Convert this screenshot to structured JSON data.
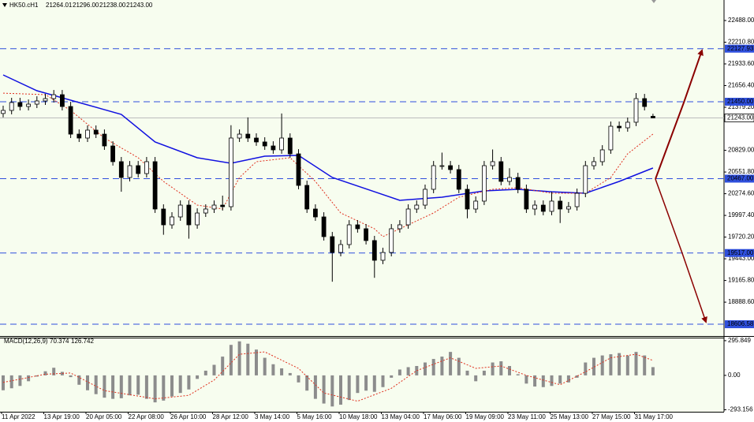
{
  "chart_data": {
    "type": "candlestick",
    "symbol": "HK50.cH1",
    "last_bar_labels": [
      "21264.01",
      "21296.00",
      "21238.00",
      "21243.00"
    ],
    "categories": [
      "11 Apr 2022",
      null,
      null,
      null,
      null,
      "13 Apr 19:00",
      null,
      null,
      null,
      null,
      "20 Apr 05:00",
      null,
      null,
      null,
      null,
      "22 Apr 08:00",
      null,
      null,
      null,
      null,
      "26 Apr 10:00",
      null,
      null,
      null,
      null,
      "28 Apr 12:00",
      null,
      null,
      null,
      null,
      "3 May 14:00",
      null,
      null,
      null,
      null,
      "5 May 16:00",
      null,
      null,
      null,
      null,
      "10 May 18:00",
      null,
      null,
      null,
      null,
      "13 May 04:00",
      null,
      null,
      null,
      null,
      "17 May 06:00",
      null,
      null,
      null,
      null,
      "19 May 09:00",
      null,
      null,
      null,
      null,
      "23 May 11:00",
      null,
      null,
      null,
      null,
      "25 May 13:00",
      null,
      null,
      null,
      null,
      "27 May 15:00",
      null,
      null,
      null,
      null,
      "31 May 17:00",
      null,
      null
    ],
    "open": [
      21300,
      21339,
      21440,
      21389,
      21419,
      21460,
      21490,
      21540,
      21389,
      21036,
      20986,
      21087,
      21036,
      20885,
      20684,
      20482,
      20633,
      20532,
      20684,
      20079,
      19877,
      19978,
      20129,
      19877,
      20028,
      20079,
      20129,
      20109,
      20986,
      21036,
      20986,
      20936,
      20885,
      20835,
      20986,
      20784,
      20381,
      20079,
      19978,
      19726,
      19524,
      19625,
      19877,
      19827,
      19676,
      19424,
      19524,
      19827,
      19877,
      20079,
      20129,
      20331,
      20633,
      20633,
      20583,
      20331,
      20079,
      20180,
      20633,
      20684,
      20432,
      20482,
      20331,
      20079,
      20129,
      20049,
      20180,
      20079,
      20109,
      20280,
      20633,
      20684,
      20835,
      21137,
      21117,
      21188,
      21490,
      21264.01
    ],
    "high": [
      21399,
      21500,
      21500,
      21479,
      21520,
      21550,
      21600,
      21600,
      21449,
      21096,
      21147,
      21147,
      21096,
      20945,
      20744,
      20693,
      20693,
      20744,
      20744,
      20139,
      20038,
      20189,
      20189,
      20088,
      20139,
      20189,
      20250,
      21150,
      21096,
      21250,
      21046,
      20996,
      20945,
      21300,
      21046,
      20844,
      20441,
      20139,
      20038,
      19786,
      19685,
      19937,
      19937,
      19887,
      19736,
      19584,
      19887,
      19937,
      20139,
      20189,
      20391,
      20693,
      20800,
      20693,
      20643,
      20391,
      20240,
      20693,
      20840,
      20744,
      20600,
      20542,
      20391,
      20189,
      20189,
      20300,
      20240,
      20169,
      20340,
      20693,
      20744,
      20895,
      21197,
      21197,
      21248,
      21560,
      21550,
      21296
    ],
    "low": [
      21250,
      21289,
      21339,
      21339,
      21369,
      21410,
      21440,
      21339,
      20986,
      20936,
      20936,
      20986,
      20835,
      20634,
      20300,
      20432,
      20482,
      20482,
      20029,
      19750,
      19827,
      19928,
      19700,
      19827,
      19978,
      20029,
      20059,
      20059,
      20936,
      20936,
      20886,
      20835,
      20785,
      20785,
      20734,
      20331,
      20029,
      19928,
      19676,
      19150,
      19474,
      19575,
      19777,
      19626,
      19200,
      19374,
      19474,
      19777,
      19827,
      20029,
      20079,
      20281,
      20583,
      20533,
      20281,
      19960,
      20029,
      20130,
      20583,
      20382,
      20382,
      20281,
      20029,
      20000,
      19999,
      19999,
      19900,
      20029,
      20059,
      20230,
      20583,
      20634,
      20785,
      21067,
      21067,
      21138,
      21339,
      21238
    ],
    "close": [
      21339,
      21440,
      21389,
      21419,
      21460,
      21490,
      21540,
      21389,
      21036,
      20986,
      21087,
      21036,
      20885,
      20684,
      20482,
      20633,
      20532,
      20684,
      20079,
      19877,
      19978,
      20129,
      19877,
      20028,
      20079,
      20129,
      20109,
      20986,
      21036,
      20986,
      20936,
      20885,
      20835,
      20986,
      20784,
      20381,
      20079,
      19978,
      19726,
      19524,
      19625,
      19877,
      19827,
      19676,
      19424,
      19524,
      19827,
      19877,
      20079,
      20129,
      20331,
      20633,
      20633,
      20583,
      20331,
      20079,
      20180,
      20633,
      20684,
      20432,
      20482,
      20331,
      20079,
      20129,
      20049,
      20180,
      20079,
      20109,
      20280,
      20633,
      20684,
      20835,
      21137,
      21117,
      21188,
      21490,
      21389,
      21243
    ],
    "ylim": [
      18456,
      22750
    ],
    "yticks": [
      {
        "value": 22488,
        "label": "22488.00"
      },
      {
        "value": 22210.8,
        "label": "22210.80"
      },
      {
        "value": 21933.6,
        "label": "21933.60"
      },
      {
        "value": 21656.4,
        "label": "21656.40"
      },
      {
        "value": 21379.2,
        "label": "21379.20"
      },
      {
        "value": 20829,
        "label": "20829.00"
      },
      {
        "value": 20551.8,
        "label": "20551.80"
      },
      {
        "value": 20274.6,
        "label": "20274.60"
      },
      {
        "value": 19997.4,
        "label": "19997.40"
      },
      {
        "value": 19720.2,
        "label": "19720.20"
      },
      {
        "value": 19443,
        "label": "19443.00"
      },
      {
        "value": 19165.8,
        "label": "19165.80"
      },
      {
        "value": 18888.6,
        "label": "18888.60"
      }
    ],
    "levels": [
      {
        "value": 22127.93,
        "label": "22127.93",
        "color": "#2f4fdc"
      },
      {
        "value": 21450,
        "label": "21450.00",
        "color": "#2f4fdc"
      },
      {
        "value": 20467,
        "label": "20467.00",
        "color": "#2f4fdc"
      },
      {
        "value": 19517,
        "label": "19517.00",
        "color": "#2f4fdc"
      },
      {
        "value": 18606.58,
        "label": "18606.58",
        "color": "#2f4fdc"
      }
    ],
    "current": {
      "value": 21243,
      "label": "21243.00"
    },
    "moving_averages": [
      {
        "color": "#1010e0",
        "dashed": false,
        "x": [
          0,
          4,
          9,
          14,
          18,
          23,
          27,
          31,
          35,
          39,
          44,
          47,
          52,
          57,
          61,
          65,
          69,
          73,
          77
        ],
        "values": [
          21792,
          21591,
          21440,
          21288,
          20936,
          20734,
          20663,
          20754,
          20764,
          20482,
          20300,
          20190,
          20230,
          20311,
          20331,
          20300,
          20280,
          20432,
          20603
        ]
      },
      {
        "color": "#e0301e",
        "dashed": true,
        "x": [
          0,
          5,
          8,
          12,
          16,
          19,
          23,
          26,
          28,
          30,
          34,
          37,
          40,
          44,
          45,
          48,
          51,
          54,
          58,
          61,
          65,
          69,
          72,
          74,
          77
        ],
        "values": [
          21560,
          21540,
          21339,
          20986,
          20734,
          20432,
          20129,
          20079,
          20482,
          20684,
          20734,
          20432,
          20028,
          19827,
          19726,
          19877,
          20028,
          20230,
          20331,
          20351,
          20280,
          20280,
          20482,
          20784,
          21036
        ]
      }
    ],
    "macd": {
      "type": "bar",
      "title": "MACD(12,26,9)",
      "color": "#8c8c8c",
      "values": [
        -127,
        -110,
        -90,
        -50,
        -10,
        35,
        65,
        30,
        -15,
        -80,
        -127,
        -160,
        -190,
        -200,
        -195,
        -170,
        -165,
        -200,
        -230,
        -215,
        -180,
        -150,
        -120,
        -30,
        40,
        90,
        160,
        260,
        290,
        270,
        220,
        150,
        95,
        60,
        20,
        -60,
        -130,
        -200,
        -240,
        -265,
        -250,
        -210,
        -150,
        -130,
        -140,
        -100,
        -20,
        50,
        70,
        80,
        110,
        140,
        160,
        200,
        150,
        40,
        -50,
        40,
        110,
        120,
        80,
        10,
        -70,
        -95,
        -100,
        -90,
        -70,
        -60,
        -20,
        110,
        150,
        170,
        180,
        190,
        170,
        200,
        170,
        70.374
      ],
      "signal": {
        "color": "#e0301e",
        "x": [
          0,
          5,
          8,
          12,
          18,
          22,
          25,
          28,
          31,
          35,
          38,
          42,
          46,
          49,
          53,
          56,
          59,
          62,
          66,
          69,
          72,
          75,
          77
        ],
        "values": [
          -60,
          10,
          20,
          -130,
          -200,
          -170,
          -40,
          180,
          200,
          60,
          -150,
          -220,
          -110,
          40,
          150,
          60,
          80,
          0,
          -80,
          30,
          150,
          180,
          126.742
        ]
      },
      "ylim": [
        -310,
        322
      ],
      "yticks": [
        295.849,
        {
          "value": 0,
          "label": "0.00"
        },
        -293.156
      ]
    }
  }
}
